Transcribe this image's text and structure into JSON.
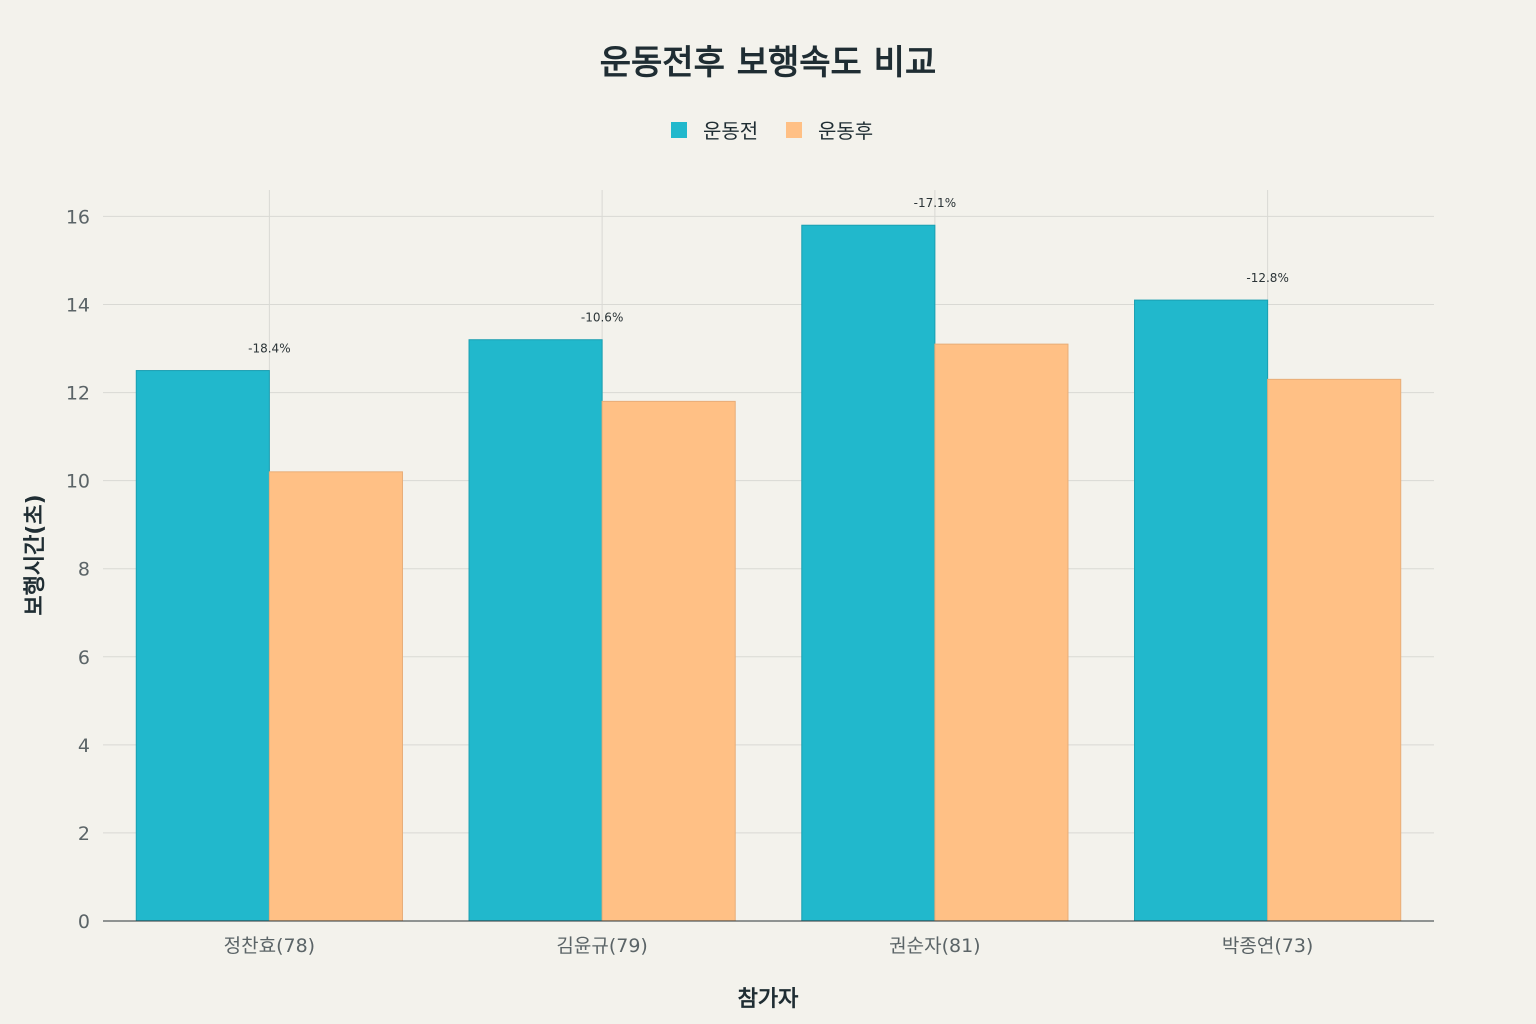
{
  "chart_data": {
    "type": "bar",
    "title": "운동전후 보행속도 비교",
    "xlabel": "참가자",
    "ylabel": "보행시간(초)",
    "categories": [
      "정찬효(78)",
      "김윤규(79)",
      "권순자(81)",
      "박종연(73)"
    ],
    "series": [
      {
        "name": "운동전",
        "color": "#21b8cc",
        "values": [
          12.5,
          13.2,
          15.8,
          14.1
        ]
      },
      {
        "name": "운동후",
        "color": "#ffc085",
        "values": [
          10.2,
          11.8,
          13.1,
          12.3
        ]
      }
    ],
    "annotations": [
      "-18.4%",
      "-10.6%",
      "-17.1%",
      "-12.8%"
    ],
    "ylim": [
      0,
      16.6
    ],
    "yticks": [
      0,
      2,
      4,
      6,
      8,
      10,
      12,
      14,
      16
    ],
    "grid": true,
    "legend_position": "top-center"
  }
}
